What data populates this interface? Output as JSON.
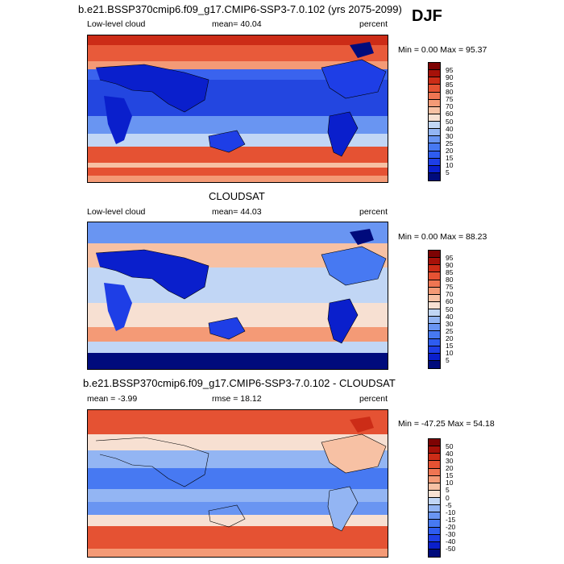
{
  "season": "DJF",
  "panels": [
    {
      "title": "b.e21.BSSP370cmip6.f09_g17.CMIP6-SSP3-7.0.102 (yrs 2075-2099)",
      "left_label": "Low-level cloud",
      "stat_label": "mean=  40.04",
      "units": "percent",
      "minmax": "Min =   0.00 Max =  95.37",
      "colorbar_ticks": [
        "95",
        "90",
        "85",
        "80",
        "75",
        "70",
        "60",
        "50",
        "40",
        "30",
        "25",
        "20",
        "15",
        "10",
        "5"
      ]
    },
    {
      "title": "CLOUDSAT",
      "left_label": "Low-level cloud",
      "stat_label": "mean=  44.03",
      "units": "percent",
      "minmax": "Min =   0.00 Max =  88.23",
      "colorbar_ticks": [
        "95",
        "90",
        "85",
        "80",
        "75",
        "70",
        "60",
        "50",
        "40",
        "30",
        "25",
        "20",
        "15",
        "10",
        "5"
      ]
    },
    {
      "title": "b.e21.BSSP370cmip6.f09_g17.CMIP6-SSP3-7.0.102 - CLOUDSAT",
      "left_label": "mean =  -3.99",
      "stat_label": "rmse =  18.12",
      "units": "percent",
      "minmax": "Min = -47.25 Max =  54.18",
      "colorbar_ticks": [
        "50",
        "40",
        "30",
        "20",
        "15",
        "10",
        "5",
        "0",
        "-5",
        "-10",
        "-15",
        "-20",
        "-30",
        "-40",
        "-50"
      ]
    }
  ],
  "chart_data": [
    {
      "type": "heatmap",
      "title": "b.e21.BSSP370cmip6.f09_g17.CMIP6-SSP3-7.0.102 (yrs 2075-2099)",
      "variable": "Low-level cloud",
      "units": "percent",
      "mean": 40.04,
      "min": 0.0,
      "max": 95.37,
      "levels": [
        5,
        10,
        15,
        20,
        25,
        30,
        40,
        50,
        60,
        70,
        75,
        80,
        85,
        90,
        95
      ]
    },
    {
      "type": "heatmap",
      "title": "CLOUDSAT",
      "variable": "Low-level cloud",
      "units": "percent",
      "mean": 44.03,
      "min": 0.0,
      "max": 88.23,
      "levels": [
        5,
        10,
        15,
        20,
        25,
        30,
        40,
        50,
        60,
        70,
        75,
        80,
        85,
        90,
        95
      ]
    },
    {
      "type": "heatmap",
      "title": "b.e21.BSSP370cmip6.f09_g17.CMIP6-SSP3-7.0.102 - CLOUDSAT",
      "units": "percent",
      "mean": -3.99,
      "rmse": 18.12,
      "min": -47.25,
      "max": 54.18,
      "levels": [
        -50,
        -40,
        -30,
        -20,
        -15,
        -10,
        -5,
        0,
        5,
        10,
        15,
        20,
        30,
        40,
        50
      ]
    }
  ],
  "colors": {
    "scale": [
      "#000b7c",
      "#0a1fcc",
      "#1e3ee6",
      "#2e5cf0",
      "#4779f2",
      "#6995f2",
      "#93b5f3",
      "#c1d6f5",
      "#e8eef7",
      "#f7e0d2",
      "#f7c1a4",
      "#f49a76",
      "#ef7552",
      "#e55233",
      "#cc2c17",
      "#a61109",
      "#7d0303"
    ]
  }
}
